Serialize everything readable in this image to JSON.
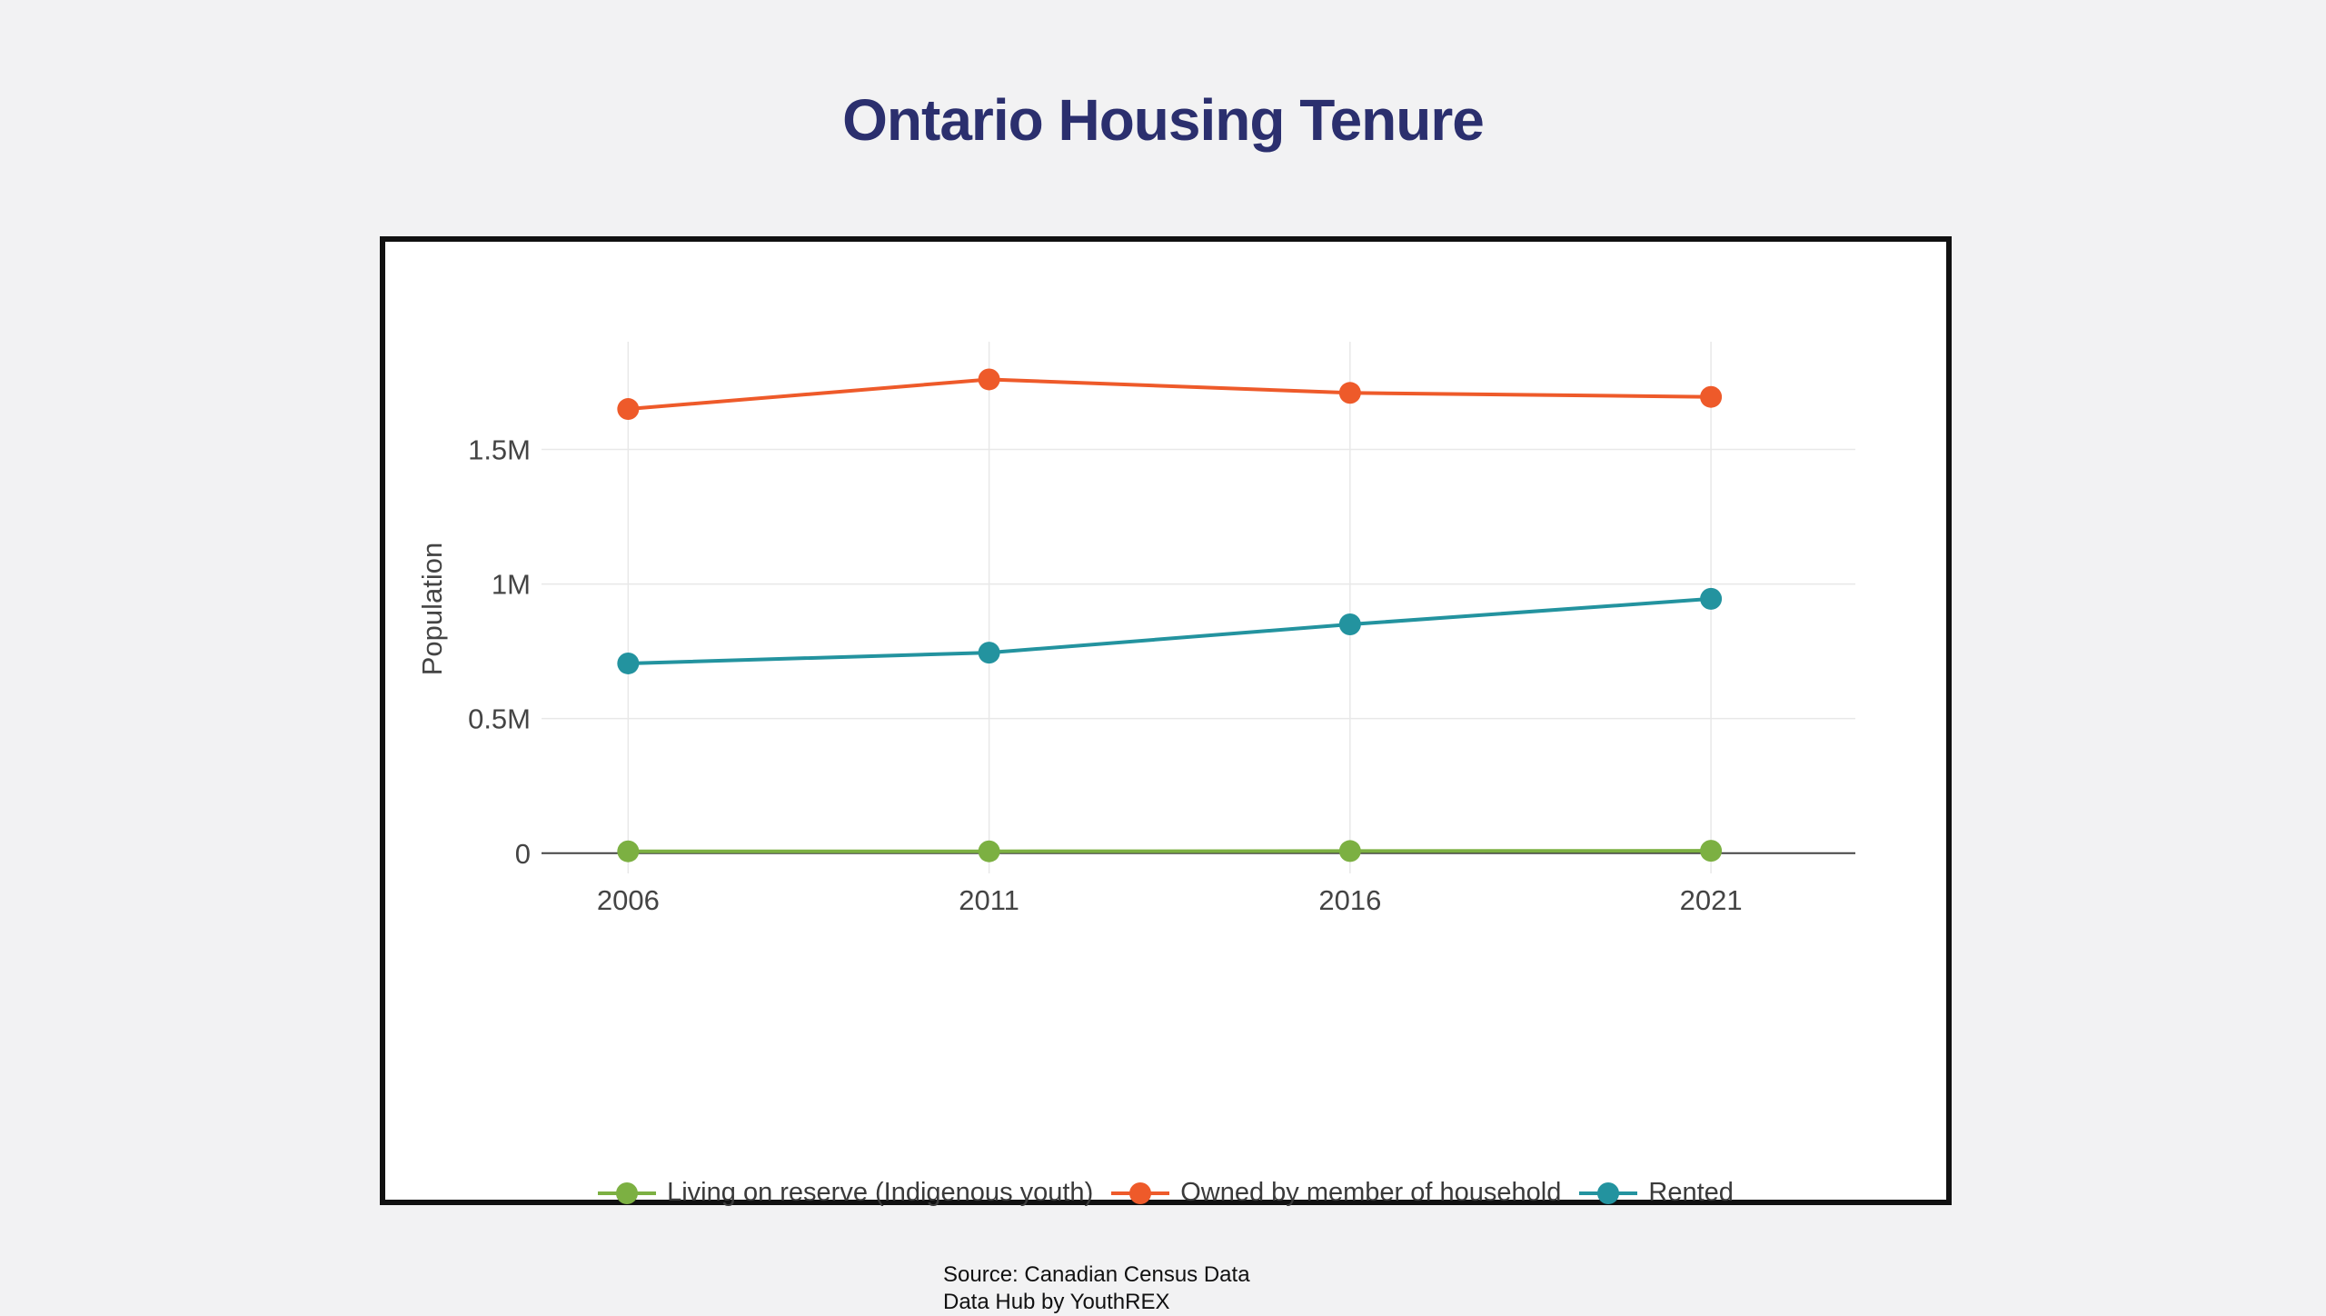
{
  "title": "Ontario Housing Tenure",
  "colors": {
    "title": "#2b2f6e",
    "background": "#f2f2f3",
    "grid": "#e8e8e8",
    "axis_text": "#444444"
  },
  "source": {
    "line1": "Source: Canadian Census Data",
    "line2": "Data Hub by YouthREX"
  },
  "chart_data": {
    "type": "line",
    "title": "",
    "xlabel": "",
    "ylabel": "Population",
    "x": [
      2006,
      2011,
      2016,
      2021
    ],
    "x_tick_labels": [
      "2006",
      "2011",
      "2016",
      "2021"
    ],
    "y_ticks": [
      0,
      500000,
      1000000,
      1500000
    ],
    "y_tick_labels": [
      "0",
      "0.5M",
      "1M",
      "1.5M"
    ],
    "ylim": [
      -75000,
      1900000
    ],
    "xlim": [
      2004.8,
      2023
    ],
    "grid": true,
    "legend_position": "bottom",
    "series": [
      {
        "name": "Living on reserve (Indigenous youth)",
        "color": "#7cb042",
        "values": [
          7000,
          7000,
          8000,
          9000
        ]
      },
      {
        "name": "Owned by member of household",
        "color": "#ee5a2a",
        "values": [
          1650000,
          1760000,
          1710000,
          1695000
        ]
      },
      {
        "name": "Rented",
        "color": "#23939f",
        "values": [
          705000,
          745000,
          850000,
          945000
        ]
      }
    ]
  }
}
